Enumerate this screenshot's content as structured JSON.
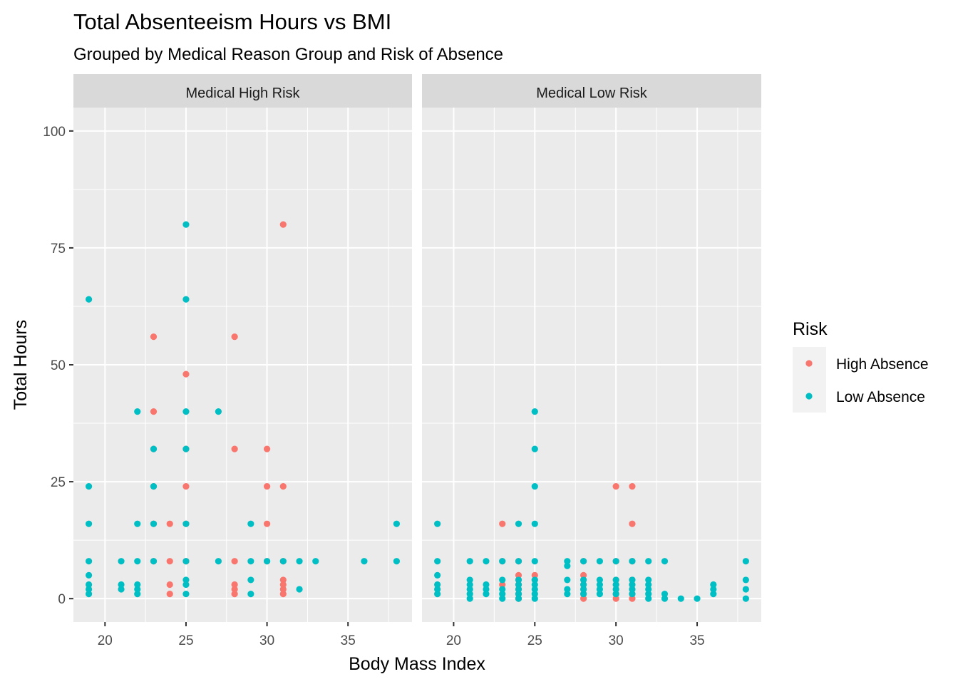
{
  "chart_data": {
    "type": "scatter",
    "title": "Total Absenteeism Hours vs BMI",
    "subtitle": "Grouped by Medical Reason Group and Risk of Absence",
    "xlabel": "Body Mass Index",
    "ylabel": "Total Hours",
    "xlim": [
      18.05,
      38.95
    ],
    "ylim": [
      -5,
      105
    ],
    "x_ticks": [
      20,
      25,
      30,
      35
    ],
    "y_ticks": [
      0,
      25,
      50,
      75,
      100
    ],
    "grid": true,
    "legend": {
      "title": "Risk",
      "placement": "right",
      "entries": [
        {
          "name": "High Absence",
          "color": "#F8766D"
        },
        {
          "name": "Low Absence",
          "color": "#00BFC4"
        }
      ]
    },
    "panels": [
      {
        "label": "Medical High Risk",
        "series": [
          {
            "name": "High Absence",
            "color": "#F8766D",
            "points": [
              [
                23,
                56
              ],
              [
                23,
                40
              ],
              [
                23,
                32
              ],
              [
                23,
                24
              ],
              [
                23,
                16
              ],
              [
                23,
                8
              ],
              [
                24,
                16
              ],
              [
                24,
                8
              ],
              [
                24,
                3
              ],
              [
                24,
                1
              ],
              [
                25,
                48
              ],
              [
                25,
                32
              ],
              [
                25,
                24
              ],
              [
                25,
                16
              ],
              [
                25,
                8
              ],
              [
                28,
                56
              ],
              [
                28,
                32
              ],
              [
                28,
                8
              ],
              [
                28,
                3
              ],
              [
                28,
                2
              ],
              [
                28,
                1
              ],
              [
                30,
                32
              ],
              [
                30,
                24
              ],
              [
                30,
                16
              ],
              [
                30,
                8
              ],
              [
                31,
                80
              ],
              [
                31,
                24
              ],
              [
                31,
                8
              ],
              [
                31,
                4
              ],
              [
                31,
                3
              ],
              [
                31,
                2
              ],
              [
                31,
                1
              ]
            ]
          },
          {
            "name": "Low Absence",
            "color": "#00BFC4",
            "points": [
              [
                19,
                64
              ],
              [
                19,
                24
              ],
              [
                19,
                16
              ],
              [
                19,
                8
              ],
              [
                19,
                5
              ],
              [
                19,
                3
              ],
              [
                19,
                2
              ],
              [
                19,
                1
              ],
              [
                21,
                8
              ],
              [
                21,
                3
              ],
              [
                21,
                2
              ],
              [
                22,
                40
              ],
              [
                22,
                16
              ],
              [
                22,
                8
              ],
              [
                22,
                3
              ],
              [
                22,
                2
              ],
              [
                22,
                1
              ],
              [
                23,
                32
              ],
              [
                23,
                24
              ],
              [
                23,
                16
              ],
              [
                23,
                8
              ],
              [
                25,
                80
              ],
              [
                25,
                64
              ],
              [
                25,
                40
              ],
              [
                25,
                32
              ],
              [
                25,
                16
              ],
              [
                25,
                8
              ],
              [
                25,
                4
              ],
              [
                25,
                3
              ],
              [
                25,
                1
              ],
              [
                27,
                40
              ],
              [
                27,
                8
              ],
              [
                29,
                16
              ],
              [
                29,
                8
              ],
              [
                29,
                4
              ],
              [
                29,
                1
              ],
              [
                30,
                8
              ],
              [
                31,
                8
              ],
              [
                32,
                8
              ],
              [
                32,
                2
              ],
              [
                33,
                8
              ],
              [
                36,
                8
              ],
              [
                38,
                16
              ],
              [
                38,
                8
              ]
            ]
          }
        ]
      },
      {
        "label": "Medical Low Risk",
        "series": [
          {
            "name": "High Absence",
            "color": "#F8766D",
            "points": [
              [
                23,
                16
              ],
              [
                23,
                8
              ],
              [
                23,
                3
              ],
              [
                24,
                8
              ],
              [
                24,
                5
              ],
              [
                24,
                4
              ],
              [
                24,
                3
              ],
              [
                24,
                2
              ],
              [
                24,
                1
              ],
              [
                24,
                0
              ],
              [
                25,
                5
              ],
              [
                25,
                4
              ],
              [
                28,
                8
              ],
              [
                28,
                5
              ],
              [
                28,
                4
              ],
              [
                28,
                3
              ],
              [
                28,
                2
              ],
              [
                28,
                1
              ],
              [
                28,
                0
              ],
              [
                30,
                24
              ],
              [
                30,
                8
              ],
              [
                30,
                4
              ],
              [
                30,
                3
              ],
              [
                30,
                2
              ],
              [
                30,
                1
              ],
              [
                30,
                0
              ],
              [
                31,
                24
              ],
              [
                31,
                16
              ],
              [
                31,
                8
              ],
              [
                31,
                4
              ],
              [
                31,
                3
              ],
              [
                31,
                2
              ],
              [
                31,
                1
              ],
              [
                31,
                0
              ]
            ]
          },
          {
            "name": "Low Absence",
            "color": "#00BFC4",
            "points": [
              [
                19,
                16
              ],
              [
                19,
                8
              ],
              [
                19,
                5
              ],
              [
                19,
                3
              ],
              [
                19,
                2
              ],
              [
                19,
                1
              ],
              [
                21,
                8
              ],
              [
                21,
                4
              ],
              [
                21,
                3
              ],
              [
                21,
                2
              ],
              [
                21,
                1
              ],
              [
                21,
                0
              ],
              [
                22,
                8
              ],
              [
                22,
                3
              ],
              [
                22,
                2
              ],
              [
                22,
                1
              ],
              [
                23,
                8
              ],
              [
                23,
                4
              ],
              [
                23,
                2
              ],
              [
                23,
                1
              ],
              [
                23,
                0
              ],
              [
                24,
                16
              ],
              [
                24,
                8
              ],
              [
                24,
                4
              ],
              [
                24,
                3
              ],
              [
                24,
                2
              ],
              [
                24,
                1
              ],
              [
                24,
                0
              ],
              [
                25,
                40
              ],
              [
                25,
                32
              ],
              [
                25,
                24
              ],
              [
                25,
                16
              ],
              [
                25,
                8
              ],
              [
                25,
                4
              ],
              [
                25,
                3
              ],
              [
                25,
                2
              ],
              [
                25,
                1
              ],
              [
                25,
                0
              ],
              [
                27,
                8
              ],
              [
                27,
                7
              ],
              [
                27,
                4
              ],
              [
                27,
                2
              ],
              [
                27,
                1
              ],
              [
                28,
                8
              ],
              [
                28,
                4
              ],
              [
                28,
                3
              ],
              [
                28,
                2
              ],
              [
                28,
                1
              ],
              [
                29,
                8
              ],
              [
                29,
                4
              ],
              [
                29,
                3
              ],
              [
                29,
                2
              ],
              [
                29,
                1
              ],
              [
                30,
                8
              ],
              [
                30,
                4
              ],
              [
                30,
                3
              ],
              [
                30,
                2
              ],
              [
                30,
                1
              ],
              [
                31,
                8
              ],
              [
                31,
                4
              ],
              [
                31,
                3
              ],
              [
                31,
                2
              ],
              [
                31,
                1
              ],
              [
                32,
                8
              ],
              [
                32,
                4
              ],
              [
                32,
                3
              ],
              [
                32,
                2
              ],
              [
                32,
                1
              ],
              [
                32,
                0
              ],
              [
                33,
                8
              ],
              [
                33,
                1
              ],
              [
                33,
                0
              ],
              [
                34,
                0
              ],
              [
                35,
                0
              ],
              [
                36,
                3
              ],
              [
                36,
                2
              ],
              [
                36,
                1
              ],
              [
                38,
                8
              ],
              [
                38,
                4
              ],
              [
                38,
                2
              ],
              [
                38,
                0
              ]
            ]
          }
        ]
      }
    ]
  }
}
